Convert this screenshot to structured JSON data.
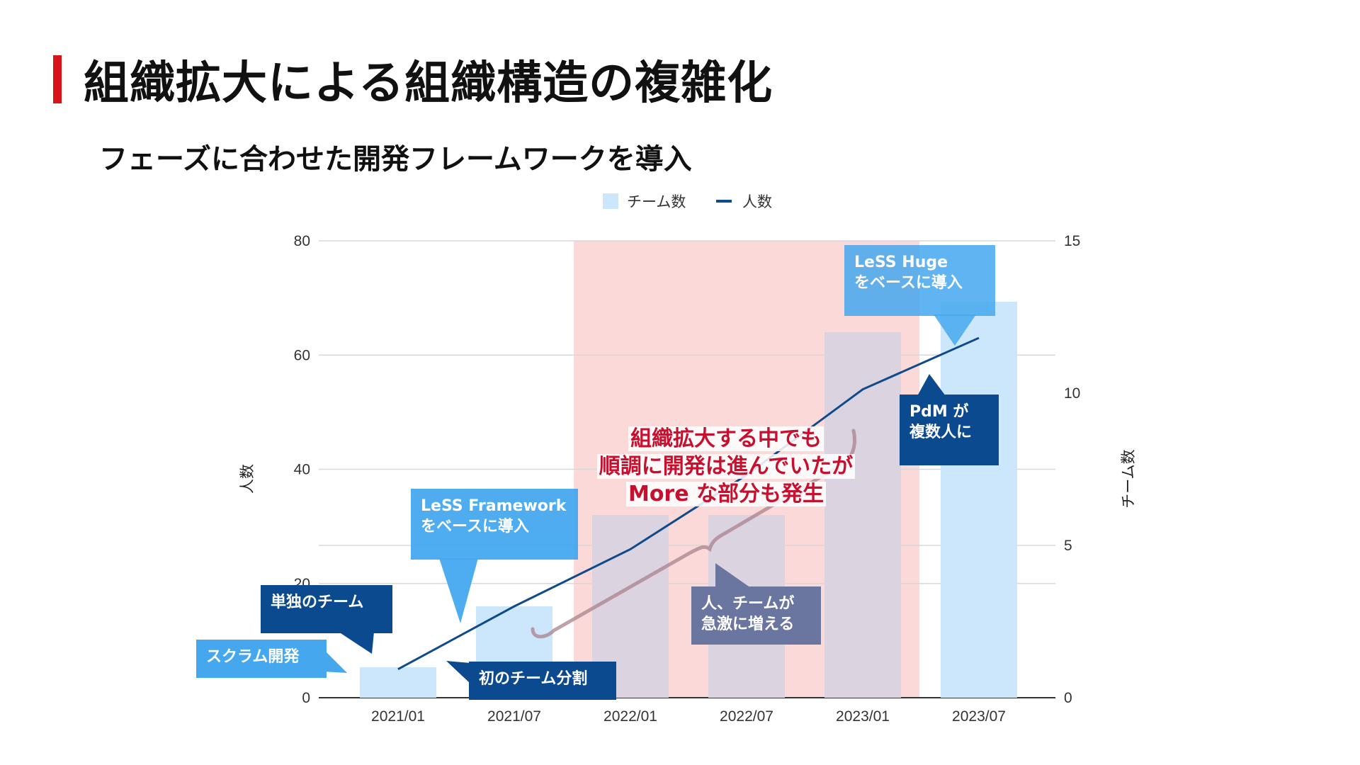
{
  "slide": {
    "title": "組織拡大による組織構造の複雑化",
    "subtitle": "フェーズに合わせた開発フレームワークを導入"
  },
  "colors": {
    "accent_red": "#d7141a",
    "bar": "#cce7fb",
    "line": "#0f4a8a",
    "highlight_band": "#fcd9d9",
    "callout_light": "#45a8ef",
    "callout_dark": "#0b4a8f",
    "callout_gray": "#6b76a0",
    "annotation_red": "#c8102e"
  },
  "chart_data": {
    "type": "bar",
    "categories": [
      "2021/01",
      "2021/07",
      "2022/01",
      "2022/07",
      "2023/01",
      "2023/07"
    ],
    "series": [
      {
        "name": "チーム数",
        "type": "bar",
        "axis": "right",
        "values": [
          1,
          3,
          6,
          6,
          12,
          13
        ]
      },
      {
        "name": "人数",
        "type": "line",
        "axis": "left",
        "values": [
          5,
          16,
          26,
          39,
          54,
          63
        ]
      }
    ],
    "legend": {
      "position": "top-center",
      "items": [
        "チーム数",
        "人数"
      ]
    },
    "ylabel_left": "人数",
    "ylabel_right": "チーム数",
    "ylim_left": [
      0,
      80
    ],
    "ylim_right": [
      0,
      15
    ],
    "yticks_left": [
      "0",
      "20",
      "40",
      "60",
      "80"
    ],
    "yticks_right": [
      "0",
      "5",
      "10",
      "15"
    ],
    "grid": true,
    "highlight_band": {
      "from": "2022/01",
      "to": "2023/01"
    }
  },
  "callouts": {
    "scrum": [
      "スクラム開発"
    ],
    "single_team": [
      "単独のチーム"
    ],
    "first_split": [
      "初のチーム分割"
    ],
    "less_framework": [
      "LeSS Framework",
      "をベースに導入"
    ],
    "less_huge": [
      "LeSS Huge",
      "をベースに導入"
    ],
    "pdm": [
      "PdM が",
      "複数人に"
    ],
    "rapid_growth": [
      "人、チームが",
      "急激に増える"
    ]
  },
  "annotation": [
    "組織拡大する中でも",
    "順調に開発は進んでいたが",
    "More な部分も発生"
  ]
}
